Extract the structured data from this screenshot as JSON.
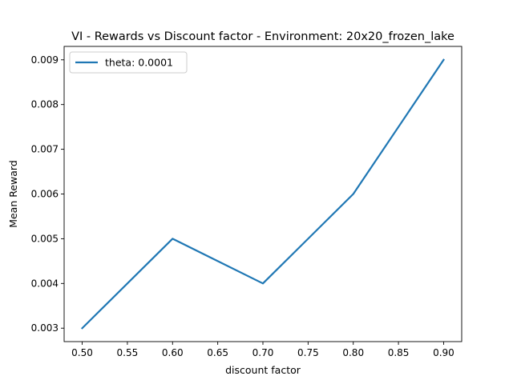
{
  "chart_data": {
    "type": "line",
    "title": "VI - Rewards vs Discount factor - Environment: 20x20_frozen_lake",
    "xlabel": "discount factor",
    "ylabel": "Mean Reward",
    "xlim": [
      0.48,
      0.92
    ],
    "ylim": [
      0.0027,
      0.0093
    ],
    "x": [
      0.5,
      0.6,
      0.7,
      0.8,
      0.9
    ],
    "xticks": [
      0.5,
      0.55,
      0.6,
      0.65,
      0.7,
      0.75,
      0.8,
      0.85,
      0.9
    ],
    "xtick_labels": [
      "0.50",
      "0.55",
      "0.60",
      "0.65",
      "0.70",
      "0.75",
      "0.80",
      "0.85",
      "0.90"
    ],
    "yticks": [
      0.003,
      0.004,
      0.005,
      0.006,
      0.007,
      0.008,
      0.009
    ],
    "ytick_labels": [
      "0.003",
      "0.004",
      "0.005",
      "0.006",
      "0.007",
      "0.008",
      "0.009"
    ],
    "grid": false,
    "legend_position": "upper-left",
    "series": [
      {
        "name": "theta: 0.0001",
        "color": "#1f77b4",
        "values": [
          0.003,
          0.005,
          0.004,
          0.006,
          0.009
        ]
      }
    ]
  }
}
